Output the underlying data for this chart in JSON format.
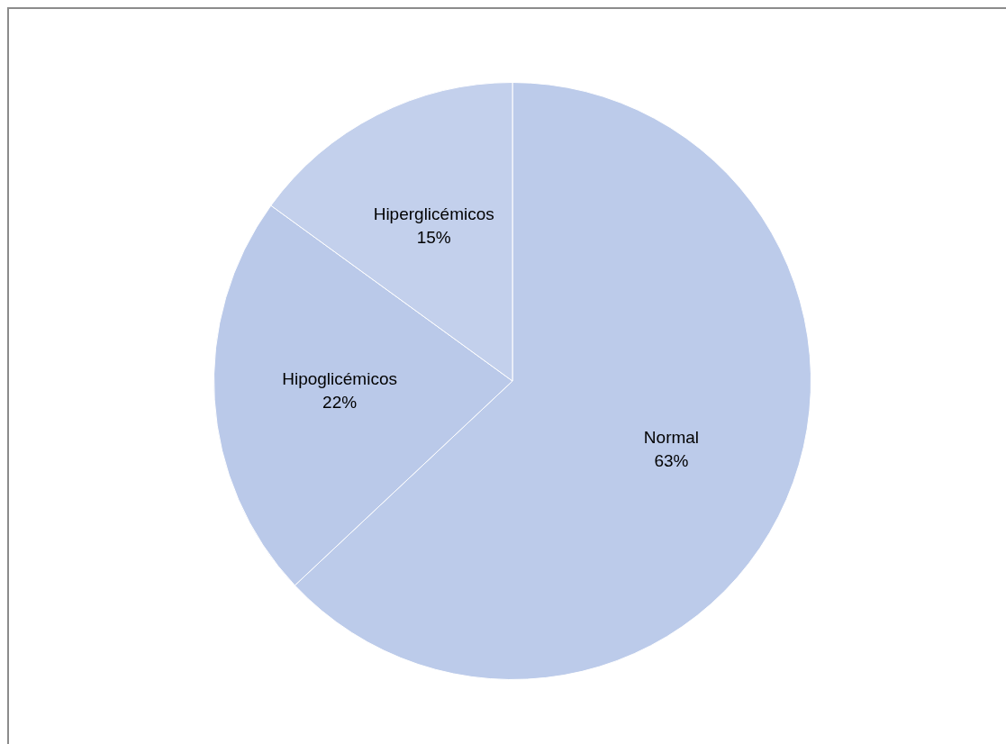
{
  "chart_data": {
    "type": "pie",
    "categories": [
      "Normal",
      "Hipoglicémicos",
      "Hiperglicémicos"
    ],
    "values": [
      63,
      22,
      15
    ],
    "colors": [
      "#bccbea",
      "#bac9e9",
      "#c3d0ec"
    ],
    "value_labels": [
      "63%",
      "22%",
      "15%"
    ],
    "legend": false
  }
}
